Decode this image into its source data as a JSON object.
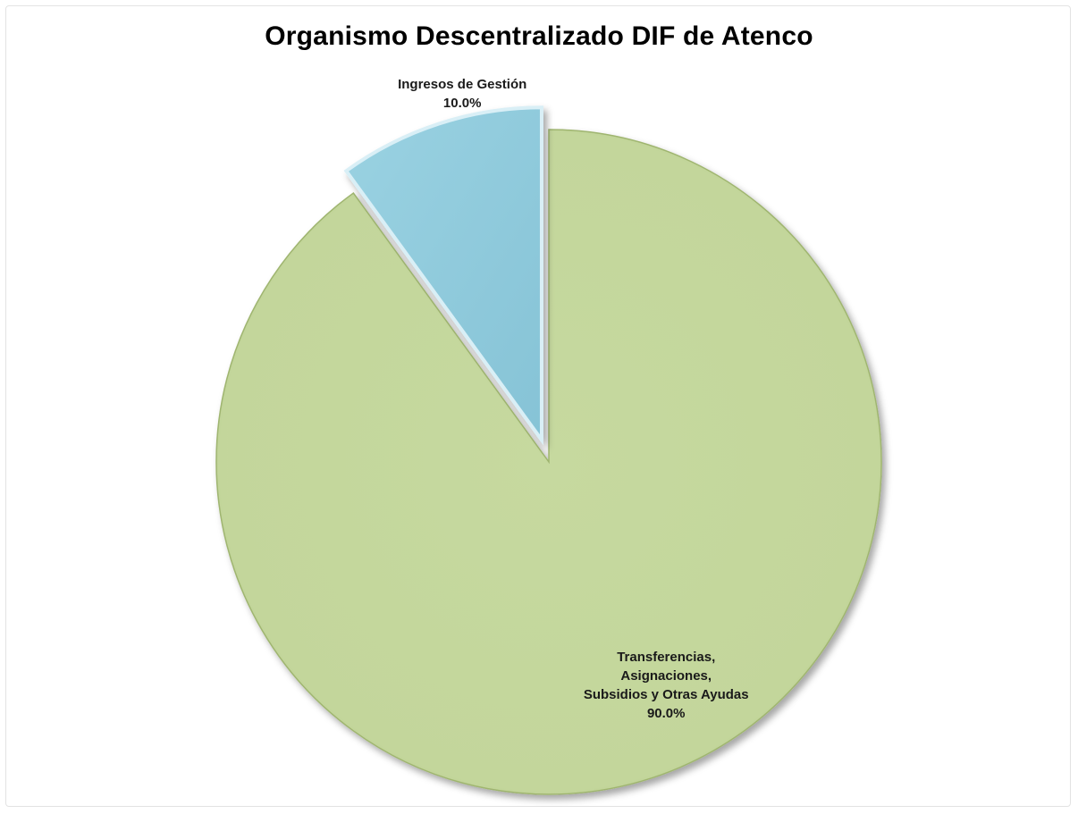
{
  "chart_data": {
    "type": "pie",
    "title": "Organismo Descentralizado DIF de Atenco",
    "slices": [
      {
        "label_lines": [
          "Transferencias,",
          "Asignaciones,",
          "Subsidios y Otras Ayudas"
        ],
        "value": 90.0,
        "value_label": "90.0%",
        "color": "#c3d69b",
        "exploded": false
      },
      {
        "label_lines": [
          "Ingresos de Gestión"
        ],
        "value": 10.0,
        "value_label": "10.0%",
        "color": "#93cddd",
        "exploded": true
      }
    ],
    "legend": "none",
    "data_labels": "inside"
  }
}
